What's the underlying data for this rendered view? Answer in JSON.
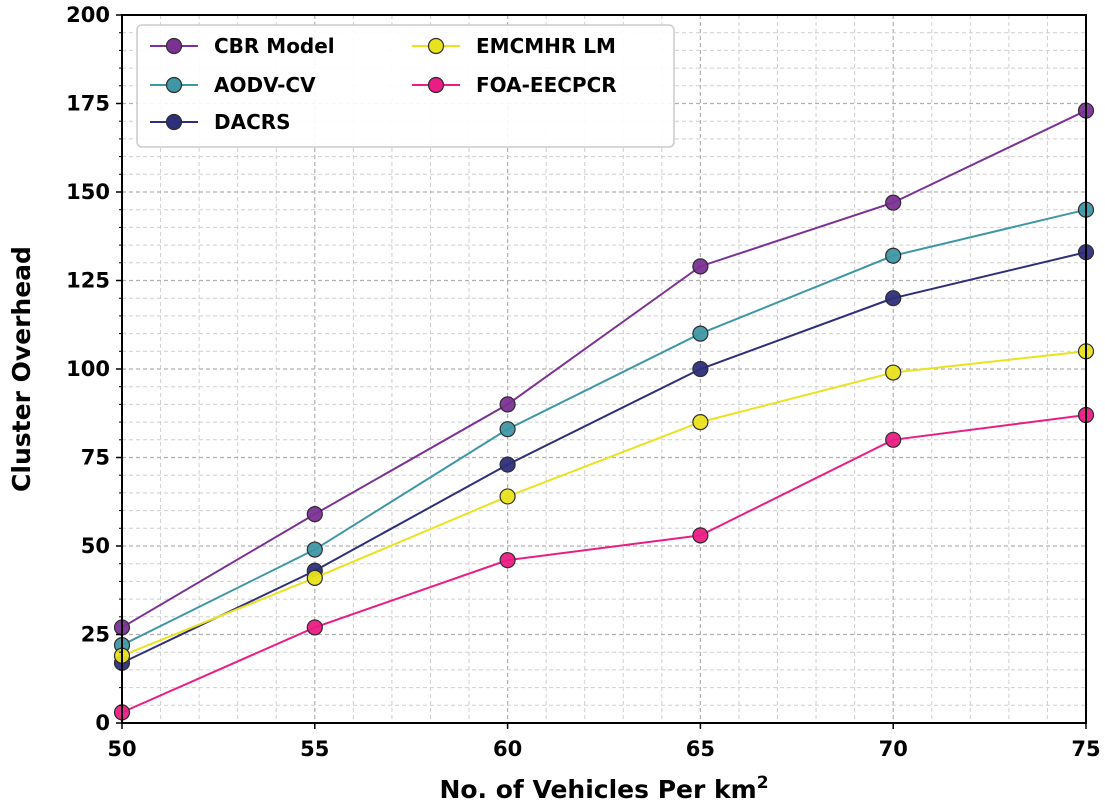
{
  "chart_data": {
    "type": "line",
    "title": "",
    "xlabel": "No. of Vehicles Per km",
    "xlabel_sup": "2",
    "ylabel": "Cluster Overhead",
    "x": [
      50,
      55,
      60,
      65,
      70,
      75
    ],
    "xlim": [
      50,
      75
    ],
    "ylim": [
      0,
      200
    ],
    "xticks": [
      "50",
      "55",
      "60",
      "65",
      "70",
      "75"
    ],
    "yticks": [
      "0",
      "25",
      "50",
      "75",
      "100",
      "125",
      "150",
      "175",
      "200"
    ],
    "grid": true,
    "legend_position": "top-left",
    "series": [
      {
        "name": "CBR Model",
        "color": "#7b3294",
        "values": [
          27,
          59,
          90,
          129,
          147,
          173
        ]
      },
      {
        "name": "AODV-CV",
        "color": "#3f97a5",
        "values": [
          22,
          49,
          83,
          110,
          132,
          145
        ]
      },
      {
        "name": "DACRS",
        "color": "#2e2f7a",
        "values": [
          17,
          43,
          73,
          100,
          120,
          133
        ]
      },
      {
        "name": "EMCMHR LM",
        "color": "#e9e21f",
        "values": [
          19,
          41,
          64,
          85,
          99,
          105
        ]
      },
      {
        "name": "FOA-EECPCR",
        "color": "#ea1d85",
        "values": [
          3,
          27,
          46,
          53,
          80,
          87
        ]
      }
    ]
  }
}
